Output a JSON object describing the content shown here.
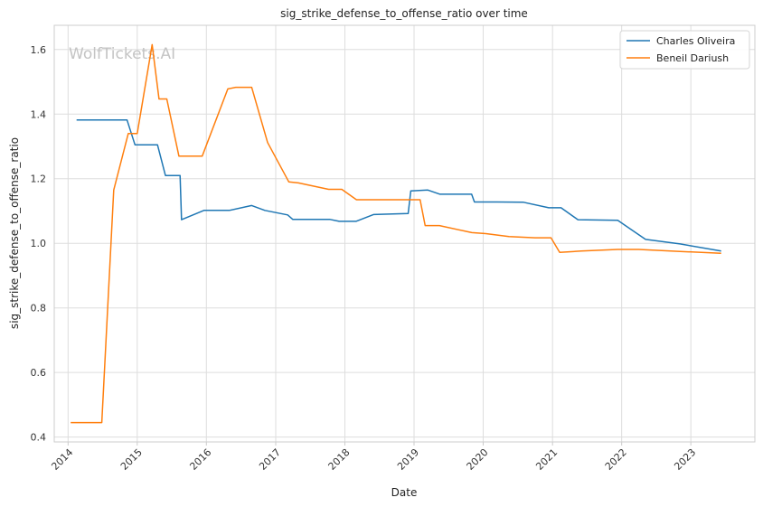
{
  "chart_data": {
    "type": "line",
    "title": "sig_strike_defense_to_offense_ratio over time",
    "xlabel": "Date",
    "ylabel": "sig_strike_defense_to_offense_ratio",
    "watermark": "WolfTickets.AI",
    "x_ticks": [
      "2014",
      "2015",
      "2016",
      "2017",
      "2018",
      "2019",
      "2020",
      "2021",
      "2022",
      "2023"
    ],
    "y_ticks": [
      "0.4",
      "0.6",
      "0.8",
      "1.0",
      "1.2",
      "1.4",
      "1.6"
    ],
    "xlim": [
      "2013-10-20",
      "2023-12-05"
    ],
    "ylim": [
      0.385,
      1.675
    ],
    "grid": true,
    "legend_position": "top-right",
    "series": [
      {
        "name": "Charles Oliveira",
        "color": "#1f77b4",
        "points": [
          [
            "2014-02-15",
            1.382
          ],
          [
            "2014-11-08",
            1.382
          ],
          [
            "2014-12-20",
            1.305
          ],
          [
            "2015-04-18",
            1.305
          ],
          [
            "2015-05-30",
            1.21
          ],
          [
            "2015-08-15",
            1.21
          ],
          [
            "2015-08-23",
            1.073
          ],
          [
            "2015-12-19",
            1.102
          ],
          [
            "2016-05-01",
            1.102
          ],
          [
            "2016-08-27",
            1.117
          ],
          [
            "2016-11-05",
            1.102
          ],
          [
            "2017-03-05",
            1.088
          ],
          [
            "2017-04-01",
            1.074
          ],
          [
            "2017-10-15",
            1.074
          ],
          [
            "2017-12-02",
            1.068
          ],
          [
            "2018-03-01",
            1.068
          ],
          [
            "2018-06-01",
            1.089
          ],
          [
            "2018-12-01",
            1.092
          ],
          [
            "2018-12-15",
            1.162
          ],
          [
            "2019-03-15",
            1.165
          ],
          [
            "2019-05-18",
            1.152
          ],
          [
            "2019-11-01",
            1.152
          ],
          [
            "2019-11-16",
            1.128
          ],
          [
            "2020-03-14",
            1.128
          ],
          [
            "2020-08-01",
            1.127
          ],
          [
            "2020-12-12",
            1.11
          ],
          [
            "2021-02-15",
            1.11
          ],
          [
            "2021-05-15",
            1.073
          ],
          [
            "2021-12-11",
            1.071
          ],
          [
            "2022-05-07",
            1.012
          ],
          [
            "2022-11-05",
            0.998
          ],
          [
            "2023-06-10",
            0.976
          ]
        ]
      },
      {
        "name": "Beneil Dariush",
        "color": "#ff7f0e",
        "points": [
          [
            "2014-01-15",
            0.445
          ],
          [
            "2014-06-28",
            0.445
          ],
          [
            "2014-08-30",
            1.165
          ],
          [
            "2014-11-15",
            1.34
          ],
          [
            "2015-01-01",
            1.34
          ],
          [
            "2015-03-21",
            1.615
          ],
          [
            "2015-04-26",
            1.447
          ],
          [
            "2015-06-06",
            1.447
          ],
          [
            "2015-08-09",
            1.27
          ],
          [
            "2015-12-10",
            1.27
          ],
          [
            "2016-04-23",
            1.478
          ],
          [
            "2016-06-04",
            1.483
          ],
          [
            "2016-08-27",
            1.483
          ],
          [
            "2016-11-19",
            1.312
          ],
          [
            "2017-03-11",
            1.19
          ],
          [
            "2017-05-01",
            1.187
          ],
          [
            "2017-10-07",
            1.167
          ],
          [
            "2017-12-16",
            1.167
          ],
          [
            "2018-03-03",
            1.135
          ],
          [
            "2018-07-01",
            1.135
          ],
          [
            "2019-02-02",
            1.135
          ],
          [
            "2019-03-01",
            1.055
          ],
          [
            "2019-05-15",
            1.055
          ],
          [
            "2019-11-02",
            1.033
          ],
          [
            "2020-01-15",
            1.03
          ],
          [
            "2020-05-16",
            1.021
          ],
          [
            "2020-10-01",
            1.017
          ],
          [
            "2020-12-24",
            1.017
          ],
          [
            "2021-02-08",
            0.972
          ],
          [
            "2021-06-01",
            0.976
          ],
          [
            "2021-12-11",
            0.981
          ],
          [
            "2022-04-01",
            0.981
          ],
          [
            "2022-11-05",
            0.975
          ],
          [
            "2023-06-10",
            0.969
          ]
        ]
      }
    ]
  }
}
